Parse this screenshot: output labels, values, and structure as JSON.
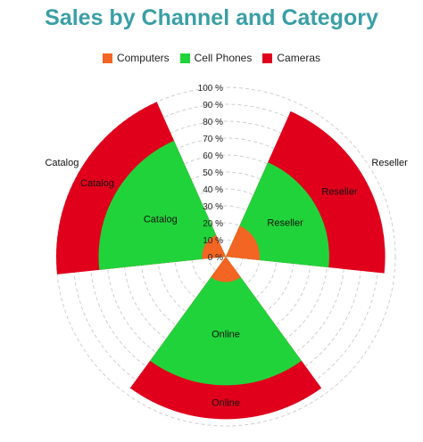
{
  "chart_data": {
    "type": "polar-bar",
    "title": "Sales by Channel and Category",
    "categories": [
      "Reseller",
      "Online",
      "Catalog"
    ],
    "series": [
      {
        "name": "Computers",
        "color": "#f26522",
        "values": [
          20,
          15,
          14
        ]
      },
      {
        "name": "Cell Phones",
        "color": "#21d33a",
        "values": [
          61,
          76,
          75
        ]
      },
      {
        "name": "Cameras",
        "color": "#e0001b",
        "values": [
          94,
          96,
          100
        ]
      }
    ],
    "radial_axis": {
      "min": 0,
      "max": 100,
      "step": 10,
      "ticks": [
        "0 %",
        "10 %",
        "20 %",
        "30 %",
        "40 %",
        "50 %",
        "60 %",
        "70 %",
        "80 %",
        "90 %",
        "100 %"
      ]
    },
    "legend_position": "top",
    "grid": true
  }
}
